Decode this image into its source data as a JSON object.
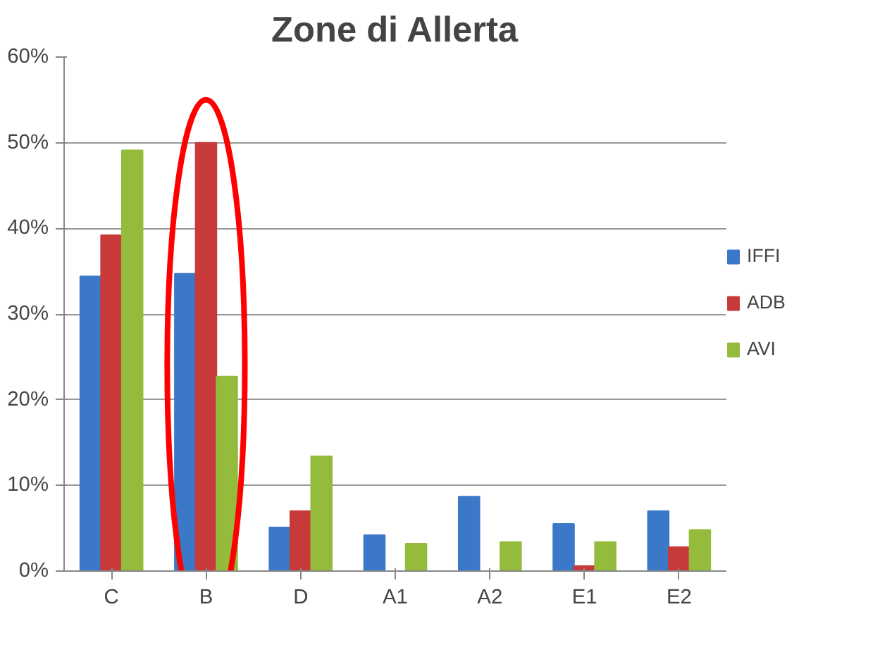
{
  "chart_data": {
    "type": "bar",
    "title": "Zone di Allerta",
    "categories": [
      "C",
      "B",
      "D",
      "A1",
      "A2",
      "E1",
      "E2"
    ],
    "series": [
      {
        "name": "IFFI",
        "color": "#3b78c8",
        "values": [
          34.4,
          34.7,
          5.1,
          4.2,
          8.7,
          5.5,
          7.0
        ]
      },
      {
        "name": "ADB",
        "color": "#c83a3a",
        "values": [
          39.2,
          50.0,
          7.0,
          0,
          0,
          0.6,
          2.8
        ]
      },
      {
        "name": "AVI",
        "color": "#94bb3c",
        "values": [
          49.1,
          22.7,
          13.4,
          3.2,
          3.4,
          3.4,
          4.8
        ]
      }
    ],
    "ylim": [
      0,
      60
    ],
    "yticks": [
      {
        "value": 0,
        "label": "0%"
      },
      {
        "value": 10,
        "label": "10%"
      },
      {
        "value": 20,
        "label": "20%"
      },
      {
        "value": 30,
        "label": "30%"
      },
      {
        "value": 40,
        "label": "40%"
      },
      {
        "value": 50,
        "label": "50%"
      },
      {
        "value": 60,
        "label": "60%"
      }
    ],
    "grid": "y",
    "legend": "right"
  }
}
